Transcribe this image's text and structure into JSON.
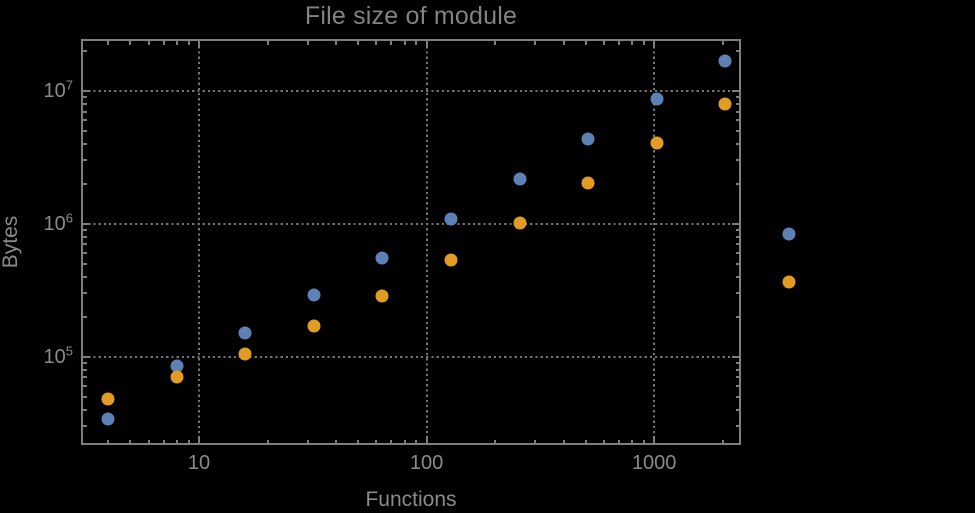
{
  "title": "File size of module",
  "axes": {
    "x": {
      "label": "Functions",
      "tick_labels": [
        "10",
        "100",
        "1000"
      ]
    },
    "y": {
      "label": "Bytes",
      "tick_labels": [
        {
          "base": "10",
          "exp": "5"
        },
        {
          "base": "10",
          "exp": "6"
        },
        {
          "base": "10",
          "exp": "7"
        }
      ]
    }
  },
  "colors": {
    "background": "#000000",
    "frame": "#7e7e7e",
    "grid": "#747474",
    "text": "#8a8a8a",
    "title": "#828282",
    "series_blue": "#5e81b5",
    "series_orange": "#e19c24"
  },
  "chart_data": {
    "type": "scatter",
    "title": "File size of module",
    "xlabel": "Functions",
    "ylabel": "Bytes",
    "x_scale": "log",
    "y_scale": "log",
    "xlim": [
      3.1,
      2370
    ],
    "ylim": [
      23000,
      24000000
    ],
    "grid": "dotted gridlines at decade majors only",
    "legend_position": "right-of-frame",
    "x_major_ticks": [
      10,
      100,
      1000
    ],
    "y_major_ticks": [
      100000,
      1000000,
      10000000
    ],
    "x": [
      4,
      8,
      16,
      32,
      64,
      128,
      256,
      512,
      1024,
      2048
    ],
    "series": [
      {
        "name": "series-blue",
        "color": "#5e81b5",
        "values": [
          34000,
          85000,
          150000,
          290000,
          550000,
          1080000,
          2170000,
          4330000,
          8700000,
          16800000
        ]
      },
      {
        "name": "series-orange",
        "color": "#e19c24",
        "values": [
          48000,
          70000,
          105000,
          170000,
          286000,
          535000,
          1010000,
          2020000,
          4040000,
          7980000
        ]
      }
    ],
    "legend_markers": [
      {
        "color": "#5e81b5",
        "label": ""
      },
      {
        "color": "#e19c24",
        "label": ""
      }
    ]
  }
}
